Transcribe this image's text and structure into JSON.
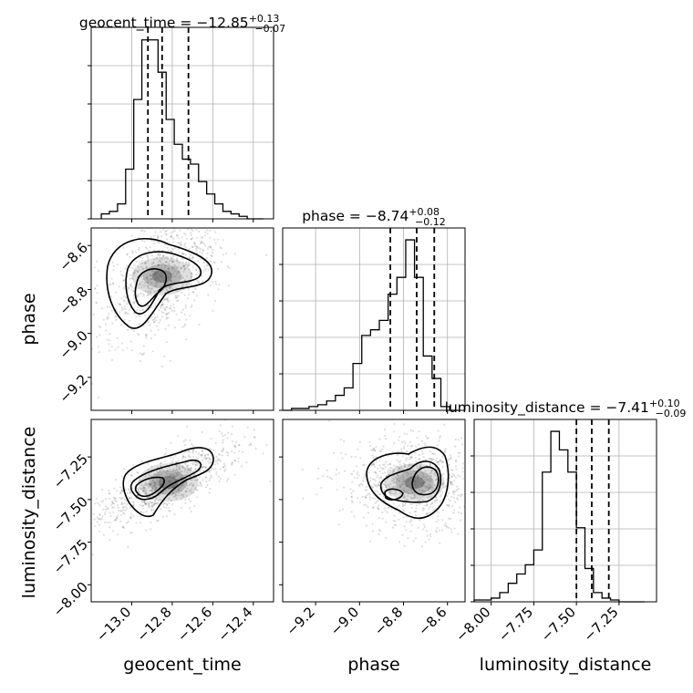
{
  "chart_data": {
    "type": "corner",
    "parameters": [
      "geocent_time",
      "phase",
      "luminosity_distance"
    ],
    "titles": [
      {
        "name": "geocent_time",
        "median": "−12.85",
        "plus": "+0.13",
        "minus": "−0.07"
      },
      {
        "name": "phase",
        "median": "−8.74",
        "plus": "+0.08",
        "minus": "−0.12"
      },
      {
        "name": "luminosity_distance",
        "median": "−7.41",
        "plus": "+0.10",
        "minus": "−0.09"
      }
    ],
    "ranges": [
      [
        -13.2,
        -12.3
      ],
      [
        -9.35,
        -8.52
      ],
      [
        -8.1,
        -7.03
      ]
    ],
    "ticks": [
      {
        "values": [
          -13.0,
          -12.8,
          -12.6,
          -12.4
        ],
        "labels": [
          "−13.0",
          "−12.8",
          "−12.6",
          "−12.4"
        ]
      },
      {
        "values": [
          -9.2,
          -9.0,
          -8.8,
          -8.6
        ],
        "labels": [
          "−9.2",
          "−9.0",
          "−8.8",
          "−8.6"
        ]
      },
      {
        "values": [
          -8.0,
          -7.75,
          -7.5,
          -7.25
        ],
        "labels": [
          "−8.00",
          "−7.75",
          "−7.50",
          "−7.25"
        ]
      }
    ],
    "histograms": [
      {
        "bin_start": -13.15,
        "bin_width": 0.04,
        "counts": [
          2,
          3,
          6,
          20,
          48,
          72,
          72,
          59,
          40,
          30,
          24,
          22,
          15,
          10,
          6,
          3,
          2,
          1,
          0,
          0
        ],
        "quantiles": [
          -12.92,
          -12.85,
          -12.72
        ]
      },
      {
        "bin_start": -9.35,
        "bin_width": 0.04,
        "counts": [
          0,
          1,
          1,
          2,
          3,
          5,
          8,
          12,
          25,
          40,
          43,
          48,
          62,
          71,
          91,
          71,
          29,
          17,
          2,
          0
        ],
        "quantiles": [
          -8.86,
          -8.74,
          -8.66
        ]
      },
      {
        "bin_start": -8.1,
        "bin_width": 0.05,
        "counts": [
          1,
          1,
          2,
          5,
          10,
          15,
          20,
          28,
          70,
          92,
          82,
          70,
          40,
          18,
          5,
          2,
          1,
          0,
          0,
          0
        ],
        "quantiles": [
          -7.5,
          -7.41,
          -7.31
        ]
      }
    ],
    "scatter_2d": [
      {
        "x_param": "geocent_time",
        "y_param": "phase",
        "mean": [
          -12.85,
          -8.74
        ],
        "sd": [
          0.12,
          0.12
        ],
        "corr": 0.5
      },
      {
        "x_param": "geocent_time",
        "y_param": "luminosity_distance",
        "mean": [
          -12.82,
          -7.4
        ],
        "sd": [
          0.14,
          0.1
        ],
        "corr": 0.8
      },
      {
        "x_param": "phase",
        "y_param": "luminosity_distance",
        "mean": [
          -8.75,
          -7.4
        ],
        "sd": [
          0.12,
          0.1
        ],
        "corr": 0.0
      }
    ],
    "xlabels": [
      "geocent_time",
      "phase",
      "luminosity_distance"
    ],
    "ylabels": [
      "phase",
      "luminosity_distance"
    ]
  }
}
